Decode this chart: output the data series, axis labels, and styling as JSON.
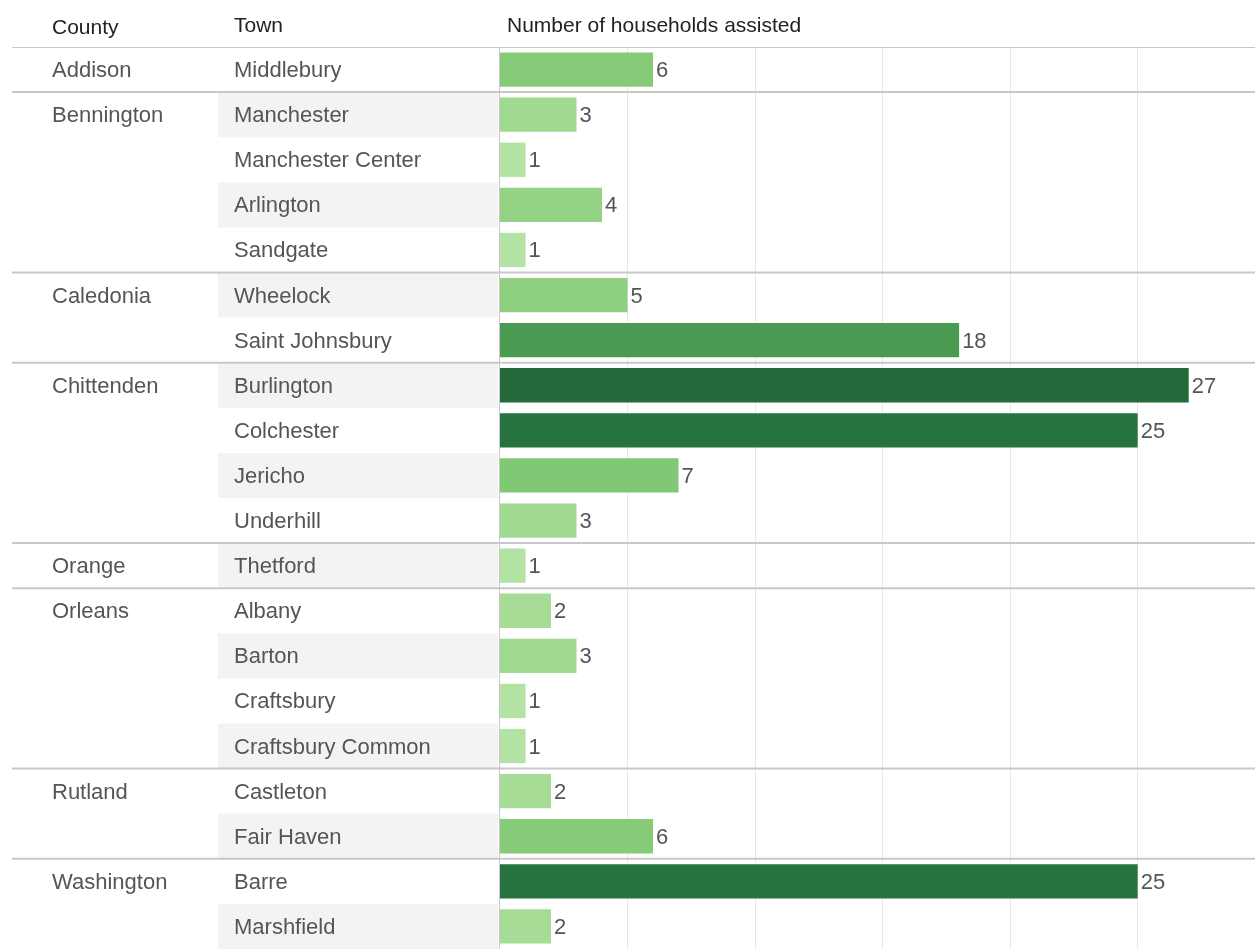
{
  "chart_data": {
    "type": "bar",
    "orientation": "horizontal",
    "xlabel": "Number of households assisted",
    "ylabel": "Town",
    "categories": [
      "Middlebury",
      "Manchester",
      "Manchester Center",
      "Arlington",
      "Sandgate",
      "Wheelock",
      "Saint Johnsbury",
      "Burlington",
      "Colchester",
      "Jericho",
      "Underhill",
      "Thetford",
      "Albany",
      "Barton",
      "Craftsbury",
      "Craftsbury Common",
      "Castleton",
      "Fair Haven",
      "Barre",
      "Marshfield"
    ],
    "values": [
      6,
      3,
      1,
      4,
      1,
      5,
      18,
      27,
      25,
      7,
      3,
      1,
      2,
      3,
      1,
      1,
      2,
      6,
      25,
      2
    ],
    "colors": [
      "#86cc78",
      "#a0da90",
      "#b2e2a4",
      "#94d384",
      "#b2e2a4",
      "#8ed080",
      "#4a9a52",
      "#23693a",
      "#277340",
      "#80c874",
      "#a0da90",
      "#b2e2a4",
      "#a6dc96",
      "#a0da90",
      "#b2e2a4",
      "#b2e2a4",
      "#a6dc96",
      "#86cc78",
      "#277340",
      "#a6dc96"
    ],
    "data_labels": true,
    "xlim": [
      0,
      29.6
    ],
    "xticks": [
      {
        "value": 0,
        "label": null
      },
      {
        "value": 5,
        "label": null
      },
      {
        "value": 10,
        "label": null
      },
      {
        "value": 15,
        "label": null
      },
      {
        "value": 20,
        "label": null
      },
      {
        "value": 25,
        "label": null
      }
    ],
    "grid": "x",
    "tick_labels": "y",
    "y2_categories": [
      "Addison",
      "Bennington",
      null,
      null,
      null,
      "Caledonia",
      null,
      "Chittenden",
      null,
      null,
      null,
      "Orange",
      "Orleans",
      null,
      null,
      null,
      "Rutland",
      null,
      "Washington",
      null
    ],
    "annotations": [
      "County"
    ]
  }
}
